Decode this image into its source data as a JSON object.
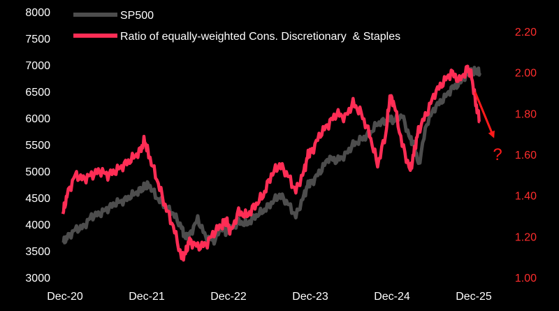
{
  "chart_data": {
    "type": "line",
    "title": "",
    "xlabel": "",
    "ylabel": "",
    "x_ticks": [
      "Dec-20",
      "Dec-21",
      "Dec-22",
      "Dec-23",
      "Dec-24",
      "Dec-25"
    ],
    "x": [
      2020.95,
      2021.0,
      2021.1,
      2021.2,
      2021.3,
      2021.4,
      2021.5,
      2021.6,
      2021.7,
      2021.8,
      2021.9,
      2021.95,
      2022.0,
      2022.1,
      2022.2,
      2022.3,
      2022.4,
      2022.45,
      2022.5,
      2022.6,
      2022.7,
      2022.8,
      2022.9,
      2022.95,
      2023.0,
      2023.1,
      2023.2,
      2023.3,
      2023.4,
      2023.5,
      2023.6,
      2023.7,
      2023.8,
      2023.9,
      2023.95,
      2024.0,
      2024.1,
      2024.2,
      2024.3,
      2024.4,
      2024.5,
      2024.6,
      2024.7,
      2024.8,
      2024.9,
      2024.95,
      2025.0,
      2025.1,
      2025.2,
      2025.25,
      2025.3,
      2025.4,
      2025.5,
      2025.6,
      2025.7,
      2025.8,
      2025.9,
      2025.95,
      2026.0,
      2026.05
    ],
    "y_left_range": [
      3000,
      8000
    ],
    "y_left_ticks": [
      "3000",
      "3500",
      "4000",
      "4500",
      "5000",
      "5500",
      "6000",
      "6500",
      "7000",
      "7500",
      "8000"
    ],
    "y_right_range": [
      1.0,
      2.3
    ],
    "y_right_ticks": [
      "1.00",
      "1.20",
      "1.40",
      "1.60",
      "1.80",
      "2.00",
      "2.20"
    ],
    "series": [
      {
        "name": "SP500",
        "axis": "left",
        "color": "#4d4d4d",
        "values": [
          3650,
          3750,
          3900,
          3950,
          4150,
          4200,
          4300,
          4400,
          4450,
          4550,
          4650,
          4700,
          4750,
          4500,
          4350,
          4200,
          3950,
          3750,
          3800,
          4100,
          3750,
          3700,
          3950,
          3850,
          3900,
          4050,
          4000,
          4150,
          4250,
          4400,
          4550,
          4400,
          4150,
          4550,
          4750,
          4800,
          5000,
          5250,
          5200,
          5300,
          5500,
          5600,
          5700,
          5900,
          5950,
          6000,
          5950,
          6050,
          5600,
          5500,
          5100,
          5900,
          6200,
          6350,
          6550,
          6650,
          6850,
          6850,
          6900,
          6850
        ]
      },
      {
        "name": "Ratio of equally-weighted Cons. Discretionary  & Staples",
        "axis": "right",
        "color": "#ff2d55",
        "values": [
          1.31,
          1.4,
          1.5,
          1.48,
          1.5,
          1.52,
          1.5,
          1.52,
          1.55,
          1.58,
          1.62,
          1.67,
          1.6,
          1.48,
          1.35,
          1.25,
          1.1,
          1.12,
          1.18,
          1.15,
          1.16,
          1.22,
          1.26,
          1.28,
          1.22,
          1.32,
          1.3,
          1.35,
          1.4,
          1.5,
          1.55,
          1.5,
          1.42,
          1.52,
          1.6,
          1.62,
          1.7,
          1.75,
          1.8,
          1.78,
          1.85,
          1.8,
          1.7,
          1.55,
          1.7,
          1.88,
          1.85,
          1.65,
          1.52,
          1.62,
          1.72,
          1.8,
          1.9,
          1.95,
          2.0,
          1.96,
          2.02,
          1.98,
          1.85,
          1.76
        ]
      }
    ],
    "legend_position": "top-left",
    "grid": false,
    "annotations": [
      {
        "type": "arrow",
        "color": "#ff1a1a",
        "from": [
          2026.1,
          1.9
        ],
        "to": [
          2026.4,
          1.67
        ]
      },
      {
        "type": "text",
        "text": "?",
        "color": "#ff1a1a",
        "at": [
          2026.45,
          1.6
        ]
      }
    ]
  }
}
